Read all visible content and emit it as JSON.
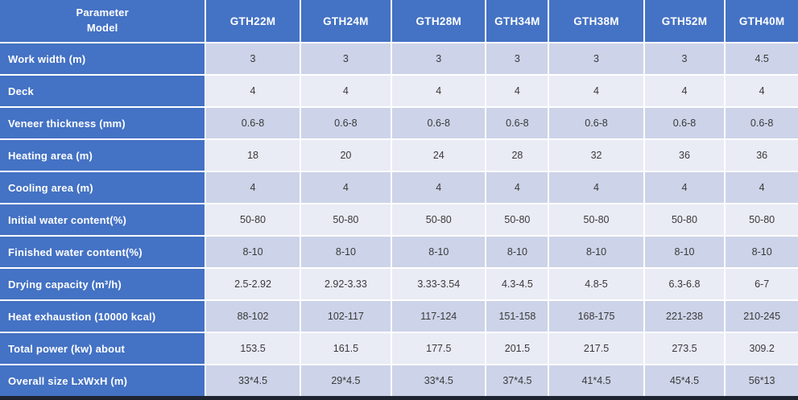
{
  "colors": {
    "blue": "#4472c4",
    "row-dark": "#cdd3e8",
    "row-light": "#e9ebf5",
    "grid": "#ffffff",
    "text": "#3a3a3a",
    "bottom-bar": "#1f2530"
  },
  "table": {
    "header": {
      "corner_top": "Parameter",
      "corner_bottom": "Model",
      "models": [
        "GTH22M",
        "GTH24M",
        "GTH28M",
        "GTH34M",
        "GTH38M",
        "GTH52M",
        "GTH40M"
      ]
    },
    "rows": [
      {
        "label": "Work width (m)",
        "values": [
          "3",
          "3",
          "3",
          "3",
          "3",
          "3",
          "4.5"
        ]
      },
      {
        "label": "Deck",
        "values": [
          "4",
          "4",
          "4",
          "4",
          "4",
          "4",
          "4"
        ]
      },
      {
        "label": "Veneer thickness (mm)",
        "values": [
          "0.6-8",
          "0.6-8",
          "0.6-8",
          "0.6-8",
          "0.6-8",
          "0.6-8",
          "0.6-8"
        ]
      },
      {
        "label": "Heating area (m)",
        "values": [
          "18",
          "20",
          "24",
          "28",
          "32",
          "36",
          "36"
        ]
      },
      {
        "label": "Cooling area (m)",
        "values": [
          "4",
          "4",
          "4",
          "4",
          "4",
          "4",
          "4"
        ]
      },
      {
        "label": "Initial water content(%)",
        "values": [
          "50-80",
          "50-80",
          "50-80",
          "50-80",
          "50-80",
          "50-80",
          "50-80"
        ]
      },
      {
        "label": "Finished water content(%)",
        "values": [
          "8-10",
          "8-10",
          "8-10",
          "8-10",
          "8-10",
          "8-10",
          "8-10"
        ]
      },
      {
        "label": "Drying capacity (m³/h)",
        "values": [
          "2.5-2.92",
          "2.92-3.33",
          "3.33-3.54",
          "4.3-4.5",
          "4.8-5",
          "6.3-6.8",
          "6-7"
        ]
      },
      {
        "label": "Heat exhaustion (10000 kcal)",
        "values": [
          "88-102",
          "102-117",
          "117-124",
          "151-158",
          "168-175",
          "221-238",
          "210-245"
        ]
      },
      {
        "label": "Total power (kw) about",
        "values": [
          "153.5",
          "161.5",
          "177.5",
          "201.5",
          "217.5",
          "273.5",
          "309.2"
        ]
      },
      {
        "label": "Overall size LxWxH (m)",
        "values": [
          "33*4.5",
          "29*4.5",
          "33*4.5",
          "37*4.5",
          "41*4.5",
          "45*4.5",
          "56*13"
        ]
      }
    ]
  }
}
